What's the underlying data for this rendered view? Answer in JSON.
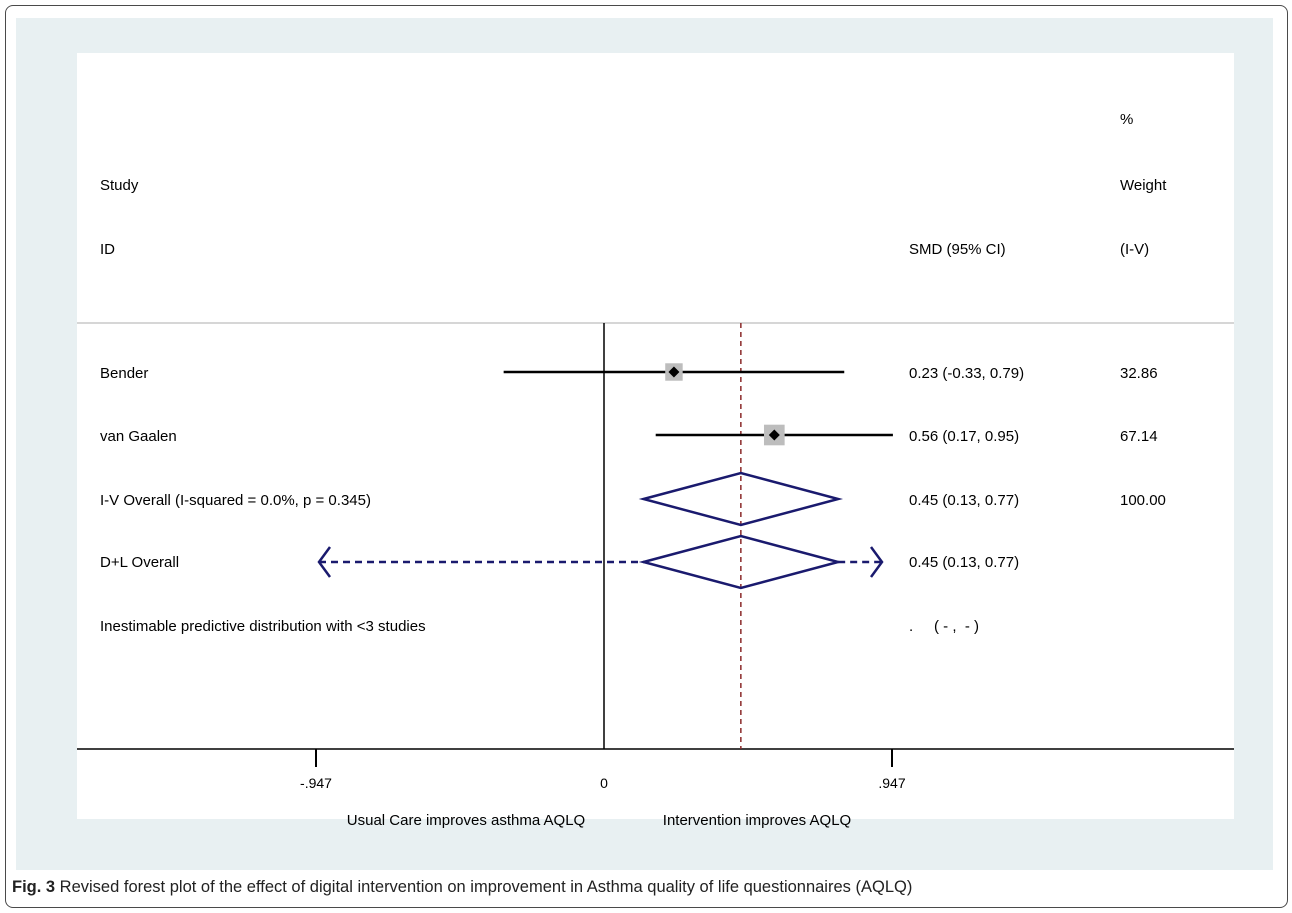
{
  "caption": {
    "label": "Fig. 3",
    "text": " Revised forest plot of the effect of digital intervention on improvement in Asthma quality of life questionnaires (AQLQ)"
  },
  "chart_data": {
    "type": "forest",
    "header": {
      "study": "Study",
      "id": "ID",
      "effect": "SMD (95% CI)",
      "weight_pct": "%",
      "weight": "Weight",
      "weight_method": "(I-V)"
    },
    "studies": [
      {
        "label": "Bender",
        "est": 0.23,
        "lo": -0.33,
        "hi": 0.79,
        "ci_text": "0.23 (-0.33, 0.79)",
        "weight": "32.86",
        "weight_val": 32.86
      },
      {
        "label": "van Gaalen",
        "est": 0.56,
        "lo": 0.17,
        "hi": 0.95,
        "ci_text": "0.56 (0.17, 0.95)",
        "weight": "67.14",
        "weight_val": 67.14
      }
    ],
    "overall_iv": {
      "label": "I-V Overall  (I-squared = 0.0%, p = 0.345)",
      "est": 0.45,
      "lo": 0.13,
      "hi": 0.77,
      "ci_text": "0.45 (0.13, 0.77)",
      "weight": "100.00"
    },
    "overall_dl": {
      "label": "D+L Overall",
      "est": 0.45,
      "lo": 0.13,
      "hi": 0.77,
      "ci_text": "0.45 (0.13, 0.77)"
    },
    "predictive": {
      "label": "Inestimable predictive distribution with <3 studies",
      "ci_text": ".     ( - ,  - )"
    },
    "x_ticks": [
      {
        "value": -0.947,
        "label": "-.947"
      },
      {
        "value": 0,
        "label": "0"
      },
      {
        "value": 0.947,
        "label": ".947"
      }
    ],
    "xlim": [
      -1.9,
      2.1
    ],
    "null_line": 0,
    "favours_left": "Usual Care improves asthma AQLQ",
    "favours_right": "Intervention improves AQLQ",
    "colors": {
      "ci_line": "#000000",
      "weight_box": "#bdbdbd",
      "diamond": "#1a1a6e",
      "overall_line": "#8b2a2a",
      "panel_bg": "#e8f0f2"
    }
  }
}
